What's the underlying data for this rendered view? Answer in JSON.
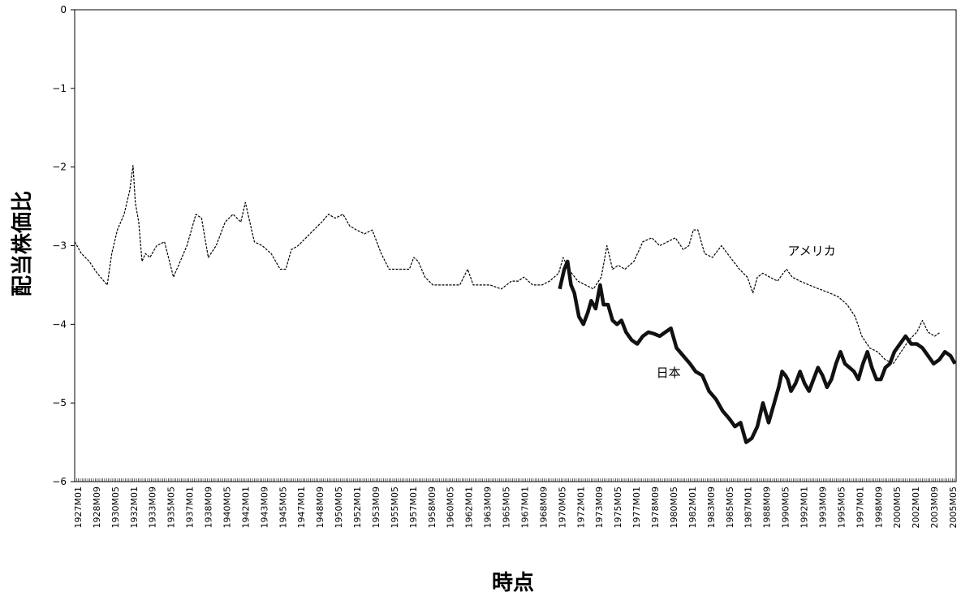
{
  "chart_data": {
    "type": "line",
    "title": "",
    "xlabel": "時点",
    "ylabel": "配当株価比",
    "ylim": [
      -6,
      0
    ],
    "yticks": [
      0,
      -1,
      -2,
      -3,
      -4,
      -5,
      -6
    ],
    "grid": false,
    "x_tick_labels": [
      "1927M01",
      "1928M09",
      "1930M05",
      "1932M01",
      "1933M09",
      "1935M05",
      "1937M01",
      "1938M09",
      "1940M05",
      "1942M01",
      "1943M09",
      "1945M05",
      "1947M01",
      "1948M09",
      "1950M05",
      "1952M01",
      "1953M09",
      "1955M05",
      "1957M01",
      "1958M09",
      "1960M05",
      "1962M01",
      "1963M09",
      "1965M05",
      "1967M01",
      "1968M09",
      "1970M05",
      "1972M01",
      "1973M09",
      "1975M05",
      "1977M01",
      "1978M09",
      "1980M05",
      "1982M01",
      "1983M09",
      "1985M05",
      "1987M01",
      "1988M09",
      "1990M05",
      "1992M01",
      "1993M09",
      "1995M05",
      "1997M01",
      "1998M09",
      "2000M05",
      "2002M01",
      "2003M09",
      "2005M05"
    ],
    "series": [
      {
        "name": "アメリカ",
        "style": "thin dashed",
        "color": "#000000",
        "x": [
          1927.0,
          1927.6,
          1928.3,
          1929.0,
          1929.9,
          1930.3,
          1930.8,
          1931.4,
          1931.9,
          1932.2,
          1932.4,
          1932.7,
          1933.0,
          1933.3,
          1933.7,
          1934.3,
          1935.0,
          1935.8,
          1936.4,
          1937.0,
          1937.8,
          1938.3,
          1938.9,
          1939.6,
          1940.4,
          1941.1,
          1941.8,
          1942.2,
          1942.6,
          1943.0,
          1943.7,
          1944.5,
          1945.3,
          1945.8,
          1946.3,
          1946.9,
          1947.6,
          1948.3,
          1949.0,
          1949.6,
          1950.2,
          1950.9,
          1951.5,
          1952.1,
          1952.8,
          1953.5,
          1954.3,
          1955.0,
          1955.9,
          1956.8,
          1957.2,
          1957.6,
          1958.2,
          1958.9,
          1959.7,
          1960.5,
          1961.3,
          1962.0,
          1962.5,
          1963.2,
          1964.0,
          1965.0,
          1965.9,
          1966.5,
          1967.0,
          1967.8,
          1968.6,
          1969.3,
          1970.1,
          1970.5,
          1971.0,
          1971.8,
          1972.5,
          1973.2,
          1973.9,
          1974.4,
          1974.9,
          1975.4,
          1976.0,
          1976.8,
          1977.6,
          1978.4,
          1979.1,
          1979.8,
          1980.5,
          1981.2,
          1981.7,
          1982.1,
          1982.5,
          1983.1,
          1983.8,
          1984.6,
          1985.4,
          1986.2,
          1986.9,
          1987.4,
          1987.6,
          1987.8,
          1988.3,
          1988.9,
          1989.6,
          1990.1,
          1990.4,
          1990.9,
          1991.6,
          1992.4,
          1993.3,
          1994.2,
          1995.0,
          1995.8,
          1996.5,
          1997.1,
          1997.8,
          1998.5,
          1999.2,
          1999.9,
          2000.6,
          2001.3,
          2002.0,
          2002.5,
          2003.0,
          2003.6,
          2004.1
        ],
        "y": [
          -2.95,
          -3.1,
          -3.2,
          -3.35,
          -3.5,
          -3.1,
          -2.8,
          -2.6,
          -2.3,
          -1.98,
          -2.45,
          -2.7,
          -3.2,
          -3.1,
          -3.15,
          -3.0,
          -2.95,
          -3.4,
          -3.2,
          -3.0,
          -2.6,
          -2.65,
          -3.15,
          -3.0,
          -2.7,
          -2.6,
          -2.7,
          -2.45,
          -2.7,
          -2.95,
          -3.0,
          -3.1,
          -3.3,
          -3.3,
          -3.05,
          -3.0,
          -2.9,
          -2.8,
          -2.7,
          -2.6,
          -2.65,
          -2.6,
          -2.75,
          -2.8,
          -2.85,
          -2.8,
          -3.1,
          -3.3,
          -3.3,
          -3.3,
          -3.15,
          -3.2,
          -3.4,
          -3.5,
          -3.5,
          -3.5,
          -3.5,
          -3.3,
          -3.5,
          -3.5,
          -3.5,
          -3.55,
          -3.45,
          -3.45,
          -3.4,
          -3.5,
          -3.5,
          -3.45,
          -3.35,
          -3.15,
          -3.3,
          -3.45,
          -3.5,
          -3.55,
          -3.4,
          -3.0,
          -3.3,
          -3.25,
          -3.3,
          -3.2,
          -2.95,
          -2.9,
          -3.0,
          -2.95,
          -2.9,
          -3.05,
          -3.0,
          -2.8,
          -2.8,
          -3.1,
          -3.15,
          -3.0,
          -3.15,
          -3.3,
          -3.4,
          -3.6,
          -3.5,
          -3.4,
          -3.35,
          -3.4,
          -3.45,
          -3.35,
          -3.3,
          -3.4,
          -3.45,
          -3.5,
          -3.55,
          -3.6,
          -3.65,
          -3.75,
          -3.9,
          -4.15,
          -4.3,
          -4.35,
          -4.45,
          -4.5,
          -4.35,
          -4.2,
          -4.1,
          -3.95,
          -4.1,
          -4.15,
          -4.1
        ],
        "label_position": [
          1990.5,
          -3.12
        ]
      },
      {
        "name": "日本",
        "style": "thick solid",
        "color": "#111111",
        "x": [
          1970.2,
          1970.6,
          1970.9,
          1971.2,
          1971.5,
          1971.9,
          1972.3,
          1972.7,
          1973.0,
          1973.4,
          1973.8,
          1974.1,
          1974.5,
          1974.9,
          1975.3,
          1975.7,
          1976.1,
          1976.6,
          1977.1,
          1977.6,
          1978.1,
          1978.6,
          1979.1,
          1979.6,
          1980.1,
          1980.6,
          1981.2,
          1981.8,
          1982.3,
          1982.9,
          1983.5,
          1984.1,
          1984.7,
          1985.3,
          1985.8,
          1986.3,
          1986.8,
          1987.3,
          1987.8,
          1988.3,
          1988.8,
          1989.3,
          1989.7,
          1990.0,
          1990.3,
          1990.5,
          1990.8,
          1991.2,
          1991.6,
          1992.0,
          1992.4,
          1992.8,
          1993.2,
          1993.6,
          1994.0,
          1994.4,
          1994.8,
          1995.2,
          1995.6,
          1996.0,
          1996.4,
          1996.8,
          1997.2,
          1997.6,
          1998.0,
          1998.4,
          1998.8,
          1999.2,
          1999.6,
          2000.0,
          2000.5,
          2001.0,
          2001.5,
          2002.0,
          2002.5,
          2003.0,
          2003.5,
          2004.0,
          2004.5,
          2005.0,
          2005.4
        ],
        "y": [
          -3.55,
          -3.3,
          -3.2,
          -3.5,
          -3.6,
          -3.9,
          -4.0,
          -3.85,
          -3.7,
          -3.8,
          -3.5,
          -3.75,
          -3.75,
          -3.95,
          -4.0,
          -3.95,
          -4.1,
          -4.2,
          -4.25,
          -4.15,
          -4.1,
          -4.12,
          -4.15,
          -4.1,
          -4.05,
          -4.3,
          -4.4,
          -4.5,
          -4.6,
          -4.65,
          -4.85,
          -4.95,
          -5.1,
          -5.2,
          -5.3,
          -5.25,
          -5.5,
          -5.45,
          -5.3,
          -5.0,
          -5.25,
          -5.0,
          -4.8,
          -4.6,
          -4.65,
          -4.7,
          -4.85,
          -4.75,
          -4.6,
          -4.75,
          -4.85,
          -4.7,
          -4.55,
          -4.65,
          -4.8,
          -4.7,
          -4.5,
          -4.35,
          -4.5,
          -4.55,
          -4.6,
          -4.7,
          -4.5,
          -4.35,
          -4.55,
          -4.7,
          -4.7,
          -4.55,
          -4.5,
          -4.35,
          -4.25,
          -4.15,
          -4.25,
          -4.25,
          -4.3,
          -4.4,
          -4.5,
          -4.45,
          -4.35,
          -4.4,
          -4.5
        ],
        "label_position": [
          1978.8,
          -4.67
        ]
      }
    ]
  }
}
